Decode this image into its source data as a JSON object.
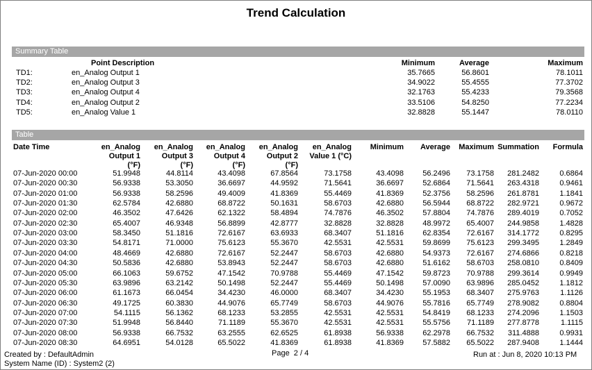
{
  "header": {
    "title": "Trend Calculation"
  },
  "summary": {
    "title": "Summary Table",
    "columns": [
      "Point Description",
      "Minimum",
      "Average",
      "Maximum"
    ],
    "rows": [
      [
        "TD1:",
        "en_Analog Output 1",
        "35.7665",
        "56.8601",
        "78.1011"
      ],
      [
        "TD2:",
        "en_Analog Output 3",
        "34.9022",
        "55.4555",
        "77.3702"
      ],
      [
        "TD3:",
        "en_Analog Output 4",
        "32.1763",
        "55.4233",
        "79.3568"
      ],
      [
        "TD4:",
        "en_Analog Output 2",
        "33.5106",
        "54.8250",
        "77.2234"
      ],
      [
        "TD5:",
        "en_Analog Value 1",
        "32.8828",
        "55.1447",
        "78.0110"
      ]
    ]
  },
  "table": {
    "title": "Table",
    "columns": [
      [
        "Date Time"
      ],
      [
        "en_Analog",
        "Output 1",
        "(°F)"
      ],
      [
        "en_Analog",
        "Output 3",
        "(°F)"
      ],
      [
        "en_Analog",
        "Output 4",
        "(°F)"
      ],
      [
        "en_Analog",
        "Output 2",
        "(°F)"
      ],
      [
        "en_Analog",
        "Value 1 (°C)"
      ],
      [
        "Minimum"
      ],
      [
        "Average"
      ],
      [
        "Maximum"
      ],
      [
        "Summation"
      ],
      [
        "Formula"
      ]
    ],
    "rows": [
      [
        "07-Jun-2020 00:00",
        "51.9948",
        "44.8114",
        "43.4098",
        "67.8564",
        "73.1758",
        "43.4098",
        "56.2496",
        "73.1758",
        "281.2482",
        "0.6864"
      ],
      [
        "07-Jun-2020 00:30",
        "56.9338",
        "53.3050",
        "36.6697",
        "44.9592",
        "71.5641",
        "36.6697",
        "52.6864",
        "71.5641",
        "263.4318",
        "0.9461"
      ],
      [
        "07-Jun-2020 01:00",
        "56.9338",
        "58.2596",
        "49.4009",
        "41.8369",
        "55.4469",
        "41.8369",
        "52.3756",
        "58.2596",
        "261.8781",
        "1.1841"
      ],
      [
        "07-Jun-2020 01:30",
        "62.5784",
        "42.6880",
        "68.8722",
        "50.1631",
        "58.6703",
        "42.6880",
        "56.5944",
        "68.8722",
        "282.9721",
        "0.9672"
      ],
      [
        "07-Jun-2020 02:00",
        "46.3502",
        "47.6426",
        "62.1322",
        "58.4894",
        "74.7876",
        "46.3502",
        "57.8804",
        "74.7876",
        "289.4019",
        "0.7052"
      ],
      [
        "07-Jun-2020 02:30",
        "65.4007",
        "46.9348",
        "56.8899",
        "42.8777",
        "32.8828",
        "32.8828",
        "48.9972",
        "65.4007",
        "244.9858",
        "1.4828"
      ],
      [
        "07-Jun-2020 03:00",
        "58.3450",
        "51.1816",
        "72.6167",
        "63.6933",
        "68.3407",
        "51.1816",
        "62.8354",
        "72.6167",
        "314.1772",
        "0.8295"
      ],
      [
        "07-Jun-2020 03:30",
        "54.8171",
        "71.0000",
        "75.6123",
        "55.3670",
        "42.5531",
        "42.5531",
        "59.8699",
        "75.6123",
        "299.3495",
        "1.2849"
      ],
      [
        "07-Jun-2020 04:00",
        "48.4669",
        "42.6880",
        "72.6167",
        "52.2447",
        "58.6703",
        "42.6880",
        "54.9373",
        "72.6167",
        "274.6866",
        "0.8218"
      ],
      [
        "07-Jun-2020 04:30",
        "50.5836",
        "42.6880",
        "53.8943",
        "52.2447",
        "58.6703",
        "42.6880",
        "51.6162",
        "58.6703",
        "258.0810",
        "0.8409"
      ],
      [
        "07-Jun-2020 05:00",
        "66.1063",
        "59.6752",
        "47.1542",
        "70.9788",
        "55.4469",
        "47.1542",
        "59.8723",
        "70.9788",
        "299.3614",
        "0.9949"
      ],
      [
        "07-Jun-2020 05:30",
        "63.9896",
        "63.2142",
        "50.1498",
        "52.2447",
        "55.4469",
        "50.1498",
        "57.0090",
        "63.9896",
        "285.0452",
        "1.1812"
      ],
      [
        "07-Jun-2020 06:00",
        "61.1673",
        "66.0454",
        "34.4230",
        "46.0000",
        "68.3407",
        "34.4230",
        "55.1953",
        "68.3407",
        "275.9763",
        "1.1126"
      ],
      [
        "07-Jun-2020 06:30",
        "49.1725",
        "60.3830",
        "44.9076",
        "65.7749",
        "58.6703",
        "44.9076",
        "55.7816",
        "65.7749",
        "278.9082",
        "0.8804"
      ],
      [
        "07-Jun-2020 07:00",
        "54.1115",
        "56.1362",
        "68.1233",
        "53.2855",
        "42.5531",
        "42.5531",
        "54.8419",
        "68.1233",
        "274.2096",
        "1.1503"
      ],
      [
        "07-Jun-2020 07:30",
        "51.9948",
        "56.8440",
        "71.1189",
        "55.3670",
        "42.5531",
        "42.5531",
        "55.5756",
        "71.1189",
        "277.8778",
        "1.1115"
      ],
      [
        "07-Jun-2020 08:00",
        "56.9338",
        "66.7532",
        "63.2555",
        "62.6525",
        "61.8938",
        "56.9338",
        "62.2978",
        "66.7532",
        "311.4888",
        "0.9931"
      ],
      [
        "07-Jun-2020 08:30",
        "64.6951",
        "54.0128",
        "65.5022",
        "41.8369",
        "61.8938",
        "41.8369",
        "57.5882",
        "65.5022",
        "287.9408",
        "1.1444"
      ]
    ]
  },
  "footer": {
    "created_by": "Created by : DefaultAdmin",
    "system_name": "System Name (ID) : System2 (2)",
    "page": "Page  2 / 4",
    "run_at": "Run at : Jun 8, 2020 10:13 PM"
  }
}
